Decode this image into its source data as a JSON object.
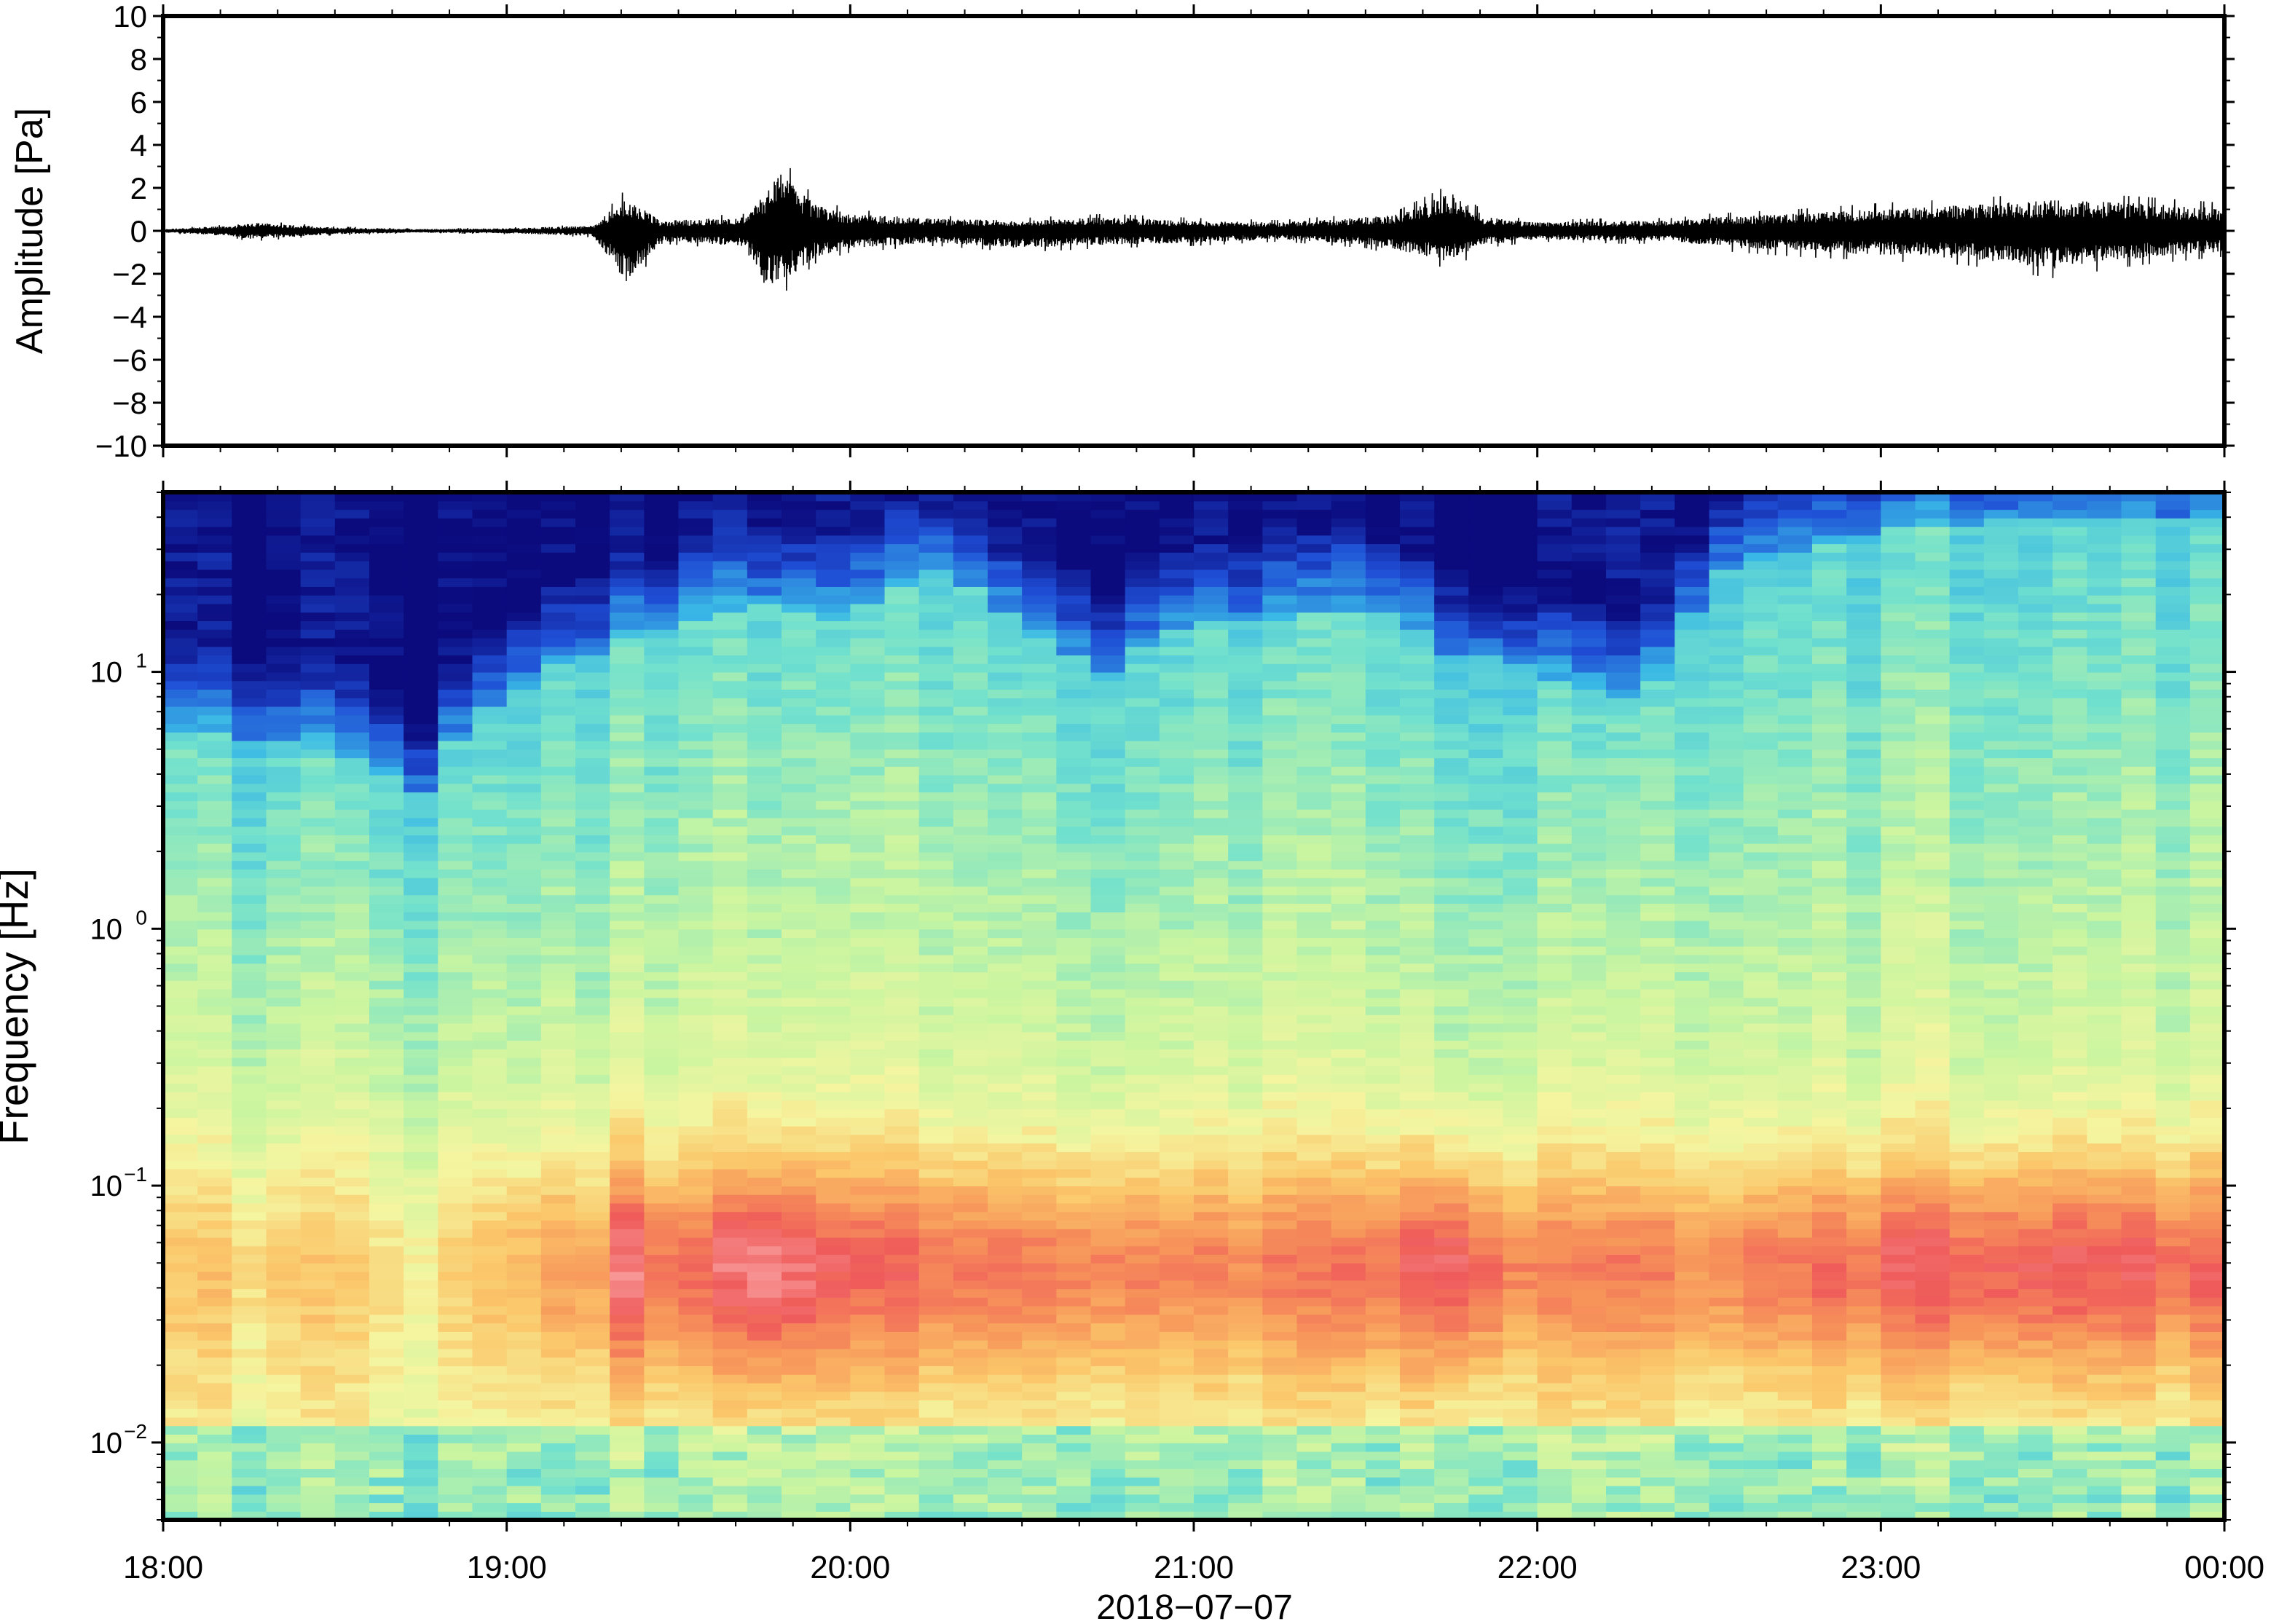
{
  "chart_data": [
    {
      "type": "line",
      "panel": "waveform",
      "ylabel": "Amplitude [Pa]",
      "ylim": [
        -10,
        10
      ],
      "yticks": [
        {
          "value": 10,
          "label": "10"
        },
        {
          "value": 8,
          "label": "8"
        },
        {
          "value": 6,
          "label": "6"
        },
        {
          "value": 4,
          "label": "4"
        },
        {
          "value": 2,
          "label": "2"
        },
        {
          "value": 0,
          "label": "0"
        },
        {
          "value": -2,
          "label": "−2"
        },
        {
          "value": -4,
          "label": "−4"
        },
        {
          "value": -6,
          "label": "−6"
        },
        {
          "value": -8,
          "label": "−8"
        },
        {
          "value": -10,
          "label": "−10"
        }
      ],
      "xlim_hours": [
        18,
        24
      ],
      "envelope_series": {
        "time_hours": [
          18.0,
          18.2,
          18.25,
          18.5,
          18.75,
          19.0,
          19.25,
          19.35,
          19.45,
          19.7,
          19.75,
          19.8,
          19.9,
          20.0,
          20.25,
          20.5,
          20.75,
          21.0,
          21.25,
          21.5,
          21.6,
          21.75,
          21.85,
          22.0,
          22.25,
          22.4,
          22.5,
          22.75,
          23.0,
          23.25,
          23.5,
          23.75,
          24.0
        ],
        "max_pa": [
          0.1,
          0.3,
          0.5,
          0.2,
          0.1,
          0.15,
          0.3,
          2.0,
          0.6,
          0.8,
          2.2,
          3.4,
          1.5,
          1.0,
          0.7,
          0.6,
          0.8,
          0.6,
          0.5,
          0.8,
          1.0,
          2.2,
          0.8,
          0.5,
          0.6,
          0.6,
          0.8,
          1.0,
          1.3,
          1.5,
          1.8,
          1.6,
          1.3
        ],
        "min_pa": [
          -0.1,
          -0.3,
          -0.5,
          -0.2,
          -0.1,
          -0.15,
          -0.3,
          -3.0,
          -0.6,
          -0.9,
          -3.2,
          -3.0,
          -1.5,
          -1.0,
          -0.7,
          -1.0,
          -0.8,
          -0.7,
          -0.5,
          -0.8,
          -1.2,
          -1.8,
          -0.8,
          -0.5,
          -0.6,
          -0.6,
          -0.9,
          -1.2,
          -1.4,
          -1.6,
          -2.2,
          -1.6,
          -1.2
        ]
      }
    },
    {
      "type": "heatmap",
      "panel": "spectrogram",
      "ylabel": "Frequency [Hz]",
      "yscale": "log",
      "ylim_hz": [
        0.005,
        50
      ],
      "yticks": [
        {
          "value": 0.01,
          "base": "10",
          "exp": "−2"
        },
        {
          "value": 0.1,
          "base": "10",
          "exp": "−1"
        },
        {
          "value": 1,
          "base": "10",
          "exp": "0"
        },
        {
          "value": 10,
          "base": "10",
          "exp": "1"
        }
      ],
      "xlabel": "2018−07−07",
      "xlim_hours": [
        18,
        24
      ],
      "xticks": [
        {
          "value": 18,
          "label": "18:00"
        },
        {
          "value": 19,
          "label": "19:00"
        },
        {
          "value": 20,
          "label": "20:00"
        },
        {
          "value": 21,
          "label": "21:00"
        },
        {
          "value": 22,
          "label": "22:00"
        },
        {
          "value": 23,
          "label": "23:00"
        },
        {
          "value": 24,
          "label": "00:00"
        }
      ],
      "colormap": [
        "#0b0b7e",
        "#1f4fd6",
        "#39b8e6",
        "#72e1cd",
        "#c9f5a0",
        "#f5f5a0",
        "#fbc76a",
        "#f7945a",
        "#ef5a5a",
        "#f9a0a0"
      ],
      "time_columns": 60,
      "cutoff_hz_by_time": {
        "time_hours": [
          18.0,
          18.5,
          18.75,
          19.0,
          19.25,
          19.5,
          19.75,
          20.0,
          20.25,
          20.5,
          20.75,
          21.0,
          21.25,
          21.5,
          21.75,
          22.0,
          22.25,
          22.4,
          22.5,
          22.75,
          23.0,
          23.5,
          24.0
        ],
        "hz": [
          6,
          5,
          3.5,
          8,
          12,
          16,
          18,
          16,
          25,
          15,
          10,
          16,
          16,
          18,
          12,
          10,
          8,
          10,
          25,
          30,
          35,
          40,
          40
        ]
      },
      "peak_level_by_time": {
        "time_hours": [
          18.0,
          18.5,
          18.75,
          19.0,
          19.25,
          19.35,
          19.5,
          19.75,
          20.0,
          20.25,
          20.5,
          20.75,
          21.0,
          21.25,
          21.5,
          21.75,
          22.0,
          22.25,
          22.5,
          22.75,
          23.0,
          23.5,
          24.0
        ],
        "level": [
          0.65,
          0.65,
          0.6,
          0.7,
          0.78,
          0.92,
          0.82,
          0.96,
          0.85,
          0.84,
          0.82,
          0.82,
          0.8,
          0.8,
          0.82,
          0.94,
          0.8,
          0.8,
          0.8,
          0.84,
          0.88,
          0.9,
          0.86
        ]
      }
    }
  ]
}
